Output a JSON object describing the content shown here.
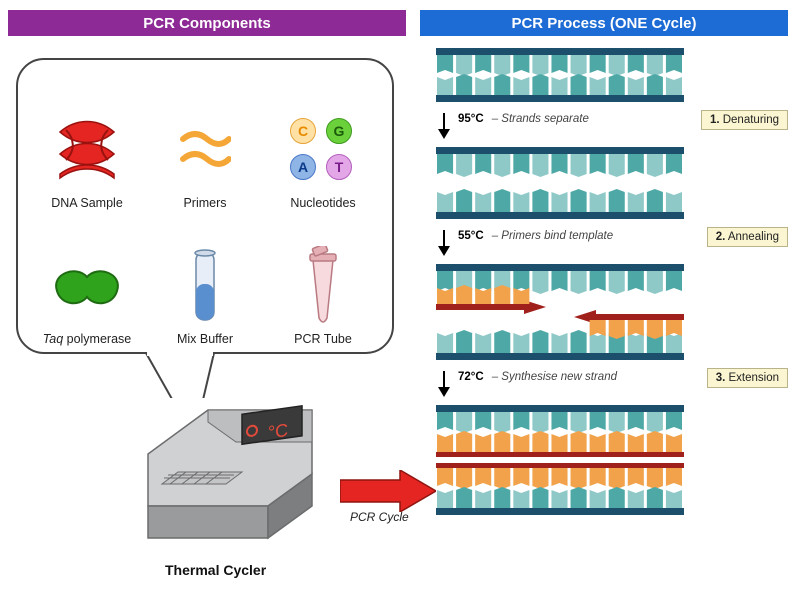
{
  "headers": {
    "left": "PCR Components",
    "right": "PCR Process  (ONE Cycle)",
    "left_bg": "#8e2a96",
    "right_bg": "#1d6bd4",
    "text_color": "#ffffff"
  },
  "components": {
    "dna_sample": {
      "label": "DNA Sample",
      "helix_color": "#e52521",
      "helix_shadow": "#9a120f"
    },
    "primers": {
      "label": "Primers",
      "color": "#f4a637"
    },
    "nucleotides": {
      "label": "Nucleotides",
      "items": [
        {
          "letter": "C",
          "bg": "#ffe1a6",
          "fg": "#e68a00",
          "border": "#e6a43a"
        },
        {
          "letter": "G",
          "bg": "#6bd13b",
          "fg": "#1a5c0b",
          "border": "#3e9a1f"
        },
        {
          "letter": "A",
          "bg": "#8fb4e6",
          "fg": "#0b3a8a",
          "border": "#4a78c8"
        },
        {
          "letter": "T",
          "bg": "#e3a7e8",
          "fg": "#7a1c8a",
          "border": "#b45fbd"
        }
      ]
    },
    "taq": {
      "label_html": "<i>Taq</i> polymerase",
      "color": "#2fa31c",
      "shadow": "#1e6b12"
    },
    "buffer": {
      "label": "Mix Buffer",
      "tube_color": "#5a8fcf",
      "glass": "#c9d6e8"
    },
    "pcr_tube": {
      "label": "PCR Tube",
      "body": "#f6dadd",
      "cap": "#e4b0b6",
      "outline": "#b97a82"
    }
  },
  "cycler": {
    "label": "Thermal Cycler",
    "body": "#b8babc",
    "body_dark": "#8a8c8e",
    "screen_bg": "#3a3a3a",
    "screen_accent": "#e24a3b"
  },
  "big_arrow": {
    "color": "#e52521",
    "label": "PCR Cycle"
  },
  "process": {
    "dna_colors": {
      "backbone": "#1c4f6b",
      "base_teal": "#4ea9a6",
      "base_teal_light": "#8fc9c7",
      "base_orange": "#f1a24a",
      "primer_red": "#a0201c"
    },
    "steps": [
      {
        "temp": "95°C",
        "desc": "– Strands separate",
        "num": "1.",
        "name": "Denaturing"
      },
      {
        "temp": "55°C",
        "desc": "– Primers bind template",
        "num": "2.",
        "name": "Annealing"
      },
      {
        "temp": "72°C",
        "desc": "– Synthesise new strand",
        "num": "3.",
        "name": "Extension"
      }
    ]
  },
  "bubble": {
    "border": "#444444",
    "radius": 28
  }
}
